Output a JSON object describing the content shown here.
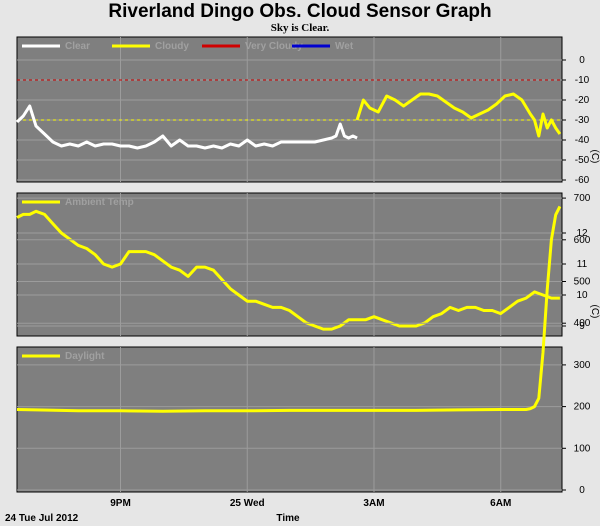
{
  "title": "Riverland Dingo Obs. Cloud Sensor Graph",
  "subtitle": "Sky is Clear.",
  "colors": {
    "background": "#e6e6e6",
    "plot_background": "#7f7f7f",
    "clear": "#ffffff",
    "cloudy": "#ffff00",
    "very_cloudy": "#d00000",
    "wet": "#0000d0",
    "grid": "#9c9c9c"
  },
  "chart_data": [
    {
      "type": "line",
      "name": "sky-temp",
      "ylabel": "(C)",
      "ylim": [
        -60,
        10
      ],
      "yticks": [
        0,
        -10,
        -20,
        -30,
        -40,
        -50,
        -60
      ],
      "xlim": [
        18.55,
        7.45
      ],
      "thresholds": [
        {
          "label": "Very Cloudy",
          "y": -10
        },
        {
          "label": "Cloudy",
          "y": -30
        }
      ],
      "legend": [
        "Clear",
        "Cloudy",
        "Very Cloudy",
        "Wet"
      ],
      "series": [
        {
          "name": "Clear",
          "x": [
            18.55,
            18.7,
            18.85,
            19.0,
            19.2,
            19.4,
            19.6,
            19.8,
            20.0,
            20.2,
            20.4,
            20.6,
            20.8,
            21.0,
            21.2,
            21.4,
            21.6,
            21.8,
            22.0,
            22.2,
            22.4,
            22.6,
            22.8,
            23.0,
            23.2,
            23.4,
            23.6,
            23.8,
            24.0,
            24.2,
            24.4,
            24.6,
            24.8,
            25.0,
            25.2,
            25.4,
            25.6,
            25.8,
            26.0,
            26.1,
            26.2,
            26.3,
            26.4,
            26.5,
            26.6
          ],
          "values": [
            -31,
            -28,
            -23,
            -33,
            -37,
            -41,
            -43,
            -42,
            -43,
            -41,
            -43,
            -42,
            -42,
            -43,
            -43,
            -44,
            -43,
            -41,
            -38,
            -43,
            -40,
            -43,
            -43,
            -44,
            -43,
            -44,
            -42,
            -43,
            -40,
            -43,
            -42,
            -43,
            -41,
            -41,
            -41,
            -41,
            -41,
            -40,
            -39,
            -38,
            -32,
            -38,
            -39,
            -38,
            -39
          ]
        },
        {
          "name": "Cloudy",
          "x": [
            26.6,
            26.75,
            26.9,
            27.1,
            27.3,
            27.5,
            27.7,
            27.9,
            28.1,
            28.3,
            28.5,
            28.7,
            28.9,
            29.1,
            29.3,
            29.5,
            29.7,
            29.9,
            30.1,
            30.3,
            30.5,
            30.7,
            30.8,
            30.9,
            31.0,
            31.1,
            31.2,
            31.3,
            31.4
          ],
          "values": [
            -30,
            -20,
            -24,
            -26,
            -18,
            -20,
            -23,
            -20,
            -17,
            -17,
            -18,
            -21,
            -24,
            -26,
            -29,
            -27,
            -25,
            -22,
            -18,
            -17,
            -20,
            -27,
            -30,
            -38,
            -27,
            -34,
            -30,
            -34,
            -37
          ]
        }
      ]
    },
    {
      "type": "line",
      "name": "ambient-temp",
      "ylabel": "(C)",
      "ylim": [
        8.5,
        13.5
      ],
      "yticks": [
        12,
        11,
        10,
        9
      ],
      "xlim": [
        18.55,
        7.45
      ],
      "legend": [
        "Ambient Temp"
      ],
      "series": [
        {
          "name": "Ambient Temp",
          "x": [
            18.55,
            18.7,
            18.85,
            19.0,
            19.2,
            19.4,
            19.6,
            19.8,
            20.0,
            20.2,
            20.4,
            20.6,
            20.8,
            21.0,
            21.2,
            21.4,
            21.6,
            21.8,
            22.0,
            22.2,
            22.4,
            22.6,
            22.8,
            23.0,
            23.2,
            23.4,
            23.6,
            23.8,
            24.0,
            24.2,
            24.4,
            24.6,
            24.8,
            25.0,
            25.2,
            25.4,
            25.6,
            25.8,
            26.0,
            26.2,
            26.4,
            26.6,
            26.8,
            27.0,
            27.2,
            27.4,
            27.6,
            27.8,
            28.0,
            28.2,
            28.4,
            28.6,
            28.8,
            29.0,
            29.2,
            29.4,
            29.6,
            29.8,
            30.0,
            30.2,
            30.4,
            30.6,
            30.8,
            31.0,
            31.2,
            31.4
          ],
          "values": [
            12.5,
            12.6,
            12.6,
            12.7,
            12.6,
            12.3,
            12.0,
            11.8,
            11.6,
            11.5,
            11.3,
            11.0,
            10.9,
            11.0,
            11.4,
            11.4,
            11.4,
            11.3,
            11.1,
            10.9,
            10.8,
            10.6,
            10.9,
            10.9,
            10.8,
            10.5,
            10.2,
            10.0,
            9.8,
            9.8,
            9.7,
            9.6,
            9.6,
            9.5,
            9.3,
            9.1,
            9.0,
            8.9,
            8.9,
            9.0,
            9.2,
            9.2,
            9.2,
            9.3,
            9.2,
            9.1,
            9.0,
            9.0,
            9.0,
            9.1,
            9.3,
            9.4,
            9.6,
            9.5,
            9.6,
            9.6,
            9.5,
            9.5,
            9.4,
            9.6,
            9.8,
            9.9,
            10.1,
            10.0,
            9.9,
            9.9
          ]
        }
      ]
    },
    {
      "type": "line",
      "name": "daylight",
      "ylim": [
        0,
        750
      ],
      "yticks": [
        700,
        600,
        500,
        400,
        300,
        200,
        100,
        0
      ],
      "xlim": [
        18.55,
        7.45
      ],
      "legend": [
        "Daylight"
      ],
      "series": [
        {
          "name": "Daylight",
          "x": [
            18.55,
            19.0,
            20.0,
            21.0,
            22.0,
            23.0,
            24.0,
            25.0,
            26.0,
            27.0,
            28.0,
            29.0,
            30.0,
            30.6,
            30.7,
            30.8,
            30.9,
            31.0,
            31.1,
            31.2,
            31.3,
            31.4
          ],
          "values": [
            193,
            192,
            190,
            190,
            189,
            190,
            190,
            191,
            191,
            191,
            191,
            192,
            193,
            193,
            195,
            200,
            220,
            330,
            480,
            600,
            660,
            680
          ]
        }
      ]
    }
  ],
  "x_axis": {
    "title": "Time",
    "date_label": "24 Tue Jul 2012",
    "ticks": [
      {
        "label": "9PM",
        "x": 21
      },
      {
        "label": "25 Wed",
        "x": 24
      },
      {
        "label": "3AM",
        "x": 27
      },
      {
        "label": "6AM",
        "x": 30
      }
    ]
  }
}
